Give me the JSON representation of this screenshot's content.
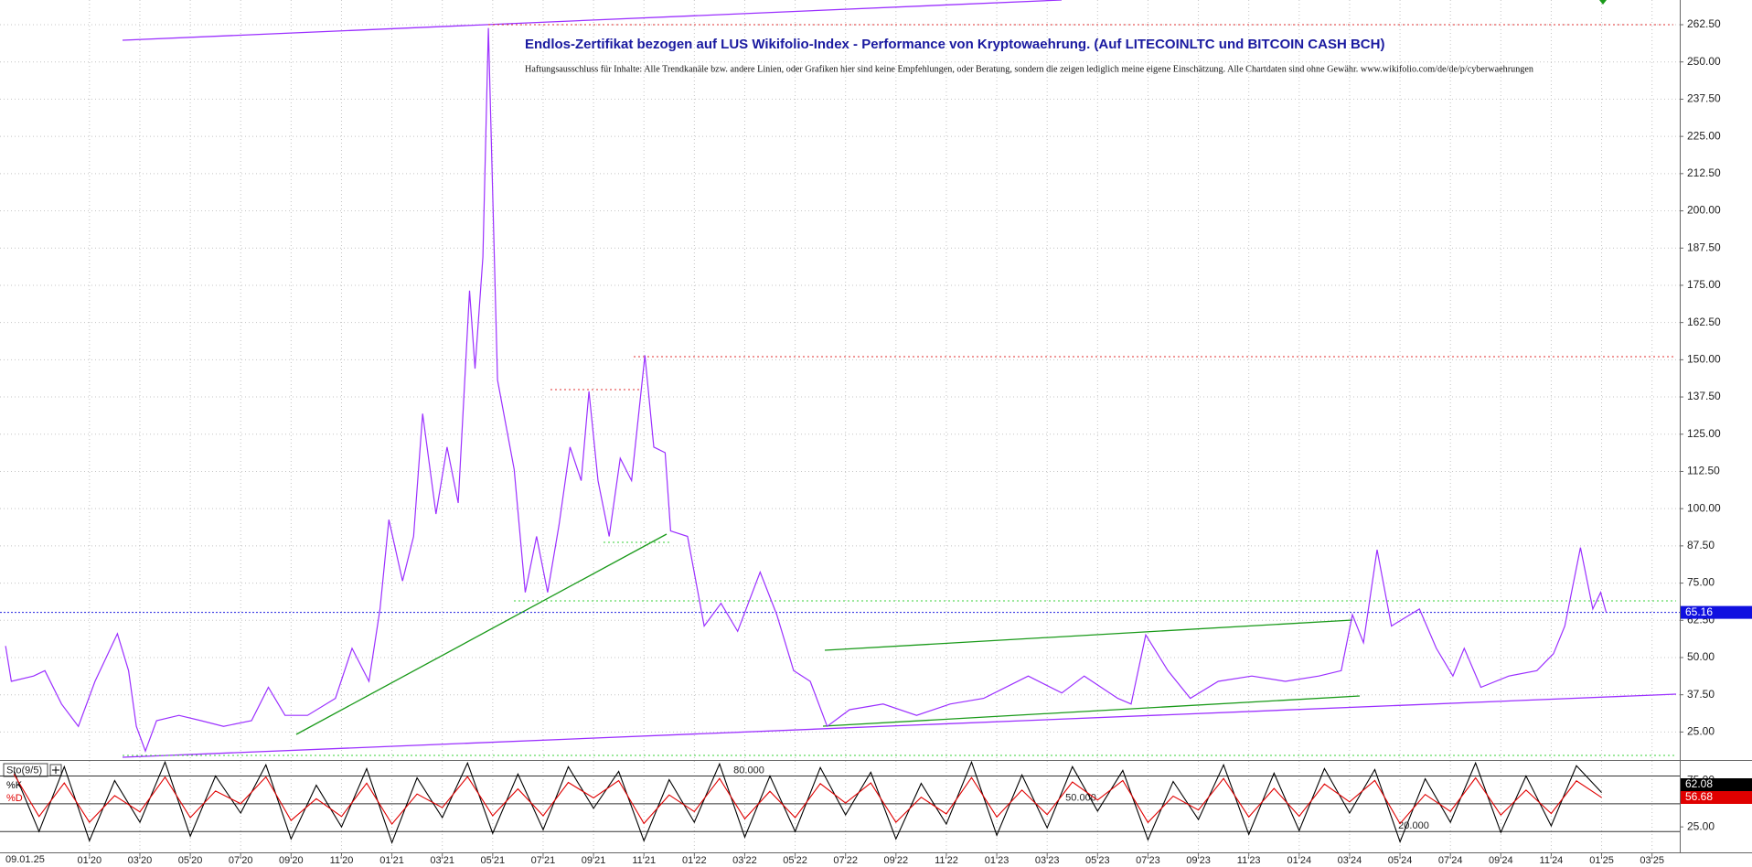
{
  "chart_data": [
    {
      "type": "line",
      "title": "Endlos-Zertifikat bezogen auf LUS Wikifolio-Index - Performance von Kryptowaehrung. (Auf LITECOINLTC und BITCOIN CASH BCH)",
      "subtitle": "Haftungsausschluss für Inhalte: Alle Trendkanäle bzw. andere Linien, oder Grafiken hier sind keine Empfehlungen, oder Beratung, sondern die zeigen lediglich meine eigene Einschätzung. Alle Chartdaten sind ohne Gewähr. www.wikifolio.com/de/de/p/cyberwaehrungen",
      "date": "09.01.25",
      "color": "#9b30ff",
      "grid": true,
      "x": [
        -3.33,
        -3.1,
        -2.22,
        -1.77,
        -1.11,
        -0.44,
        0.22,
        1.11,
        1.55,
        1.86,
        2.22,
        2.66,
        3.55,
        4.43,
        5.32,
        6.43,
        7.1,
        7.76,
        8.65,
        9.76,
        10.42,
        11.09,
        11.53,
        11.88,
        12.42,
        12.86,
        13.22,
        13.75,
        14.19,
        14.63,
        15.08,
        15.3,
        15.61,
        15.83,
        16.19,
        16.85,
        17.29,
        17.74,
        18.18,
        18.63,
        19.07,
        19.51,
        19.82,
        20.18,
        20.62,
        21.06,
        21.51,
        22.04,
        22.39,
        22.84,
        23.06,
        23.73,
        24.39,
        25.06,
        25.72,
        26.61,
        27.27,
        27.94,
        28.6,
        29.27,
        30.16,
        31.49,
        32.82,
        34.15,
        35.48,
        37.25,
        38.58,
        39.47,
        40.8,
        41.33,
        41.91,
        42.79,
        43.68,
        44.79,
        46.12,
        47.45,
        48.78,
        49.67,
        50.11,
        50.55,
        51.09,
        51.66,
        52.77,
        53.44,
        54.1,
        54.55,
        55.21,
        56.32,
        57.43,
        58.09,
        58.54,
        59.16,
        59.65,
        59.96,
        60.18
      ],
      "values": [
        53.9,
        42,
        43.8,
        45.6,
        34.4,
        26.9,
        42,
        58,
        45.6,
        26.9,
        18.6,
        28.8,
        30.6,
        28.8,
        26.9,
        28.8,
        40,
        30.6,
        30.6,
        36.3,
        53.1,
        42,
        66.3,
        96.3,
        75.7,
        90.7,
        131.9,
        98.2,
        120.7,
        101.9,
        173.2,
        147,
        184.5,
        261.4,
        143.2,
        113.2,
        71.9,
        90.7,
        71.9,
        94.4,
        120.7,
        109.4,
        139.4,
        109.4,
        90.7,
        116.9,
        109.4,
        151.5,
        120.7,
        118.8,
        92.5,
        90.7,
        60.6,
        68.2,
        58.8,
        78.7,
        64.4,
        45.6,
        42,
        26.9,
        32.5,
        34.4,
        30.6,
        34.4,
        36.3,
        43.8,
        38.1,
        43.8,
        36.3,
        34.4,
        57.6,
        45.6,
        36.3,
        42,
        43.8,
        42,
        43.8,
        45.6,
        64.4,
        55,
        86.2,
        60.6,
        66.3,
        53.1,
        43.8,
        53.1,
        40,
        43.8,
        45.6,
        51.3,
        60.6,
        86.9,
        66.3,
        71.9,
        65.2
      ],
      "current_value": 65.16,
      "xlim": [
        -3.55,
        63.1
      ],
      "ylim": [
        15.6,
        270.8
      ],
      "xticks": [
        {
          "value": 0,
          "label": "01'20"
        },
        {
          "value": 2,
          "label": "03'20"
        },
        {
          "value": 4,
          "label": "05'20"
        },
        {
          "value": 6,
          "label": "07'20"
        },
        {
          "value": 8,
          "label": "09'20"
        },
        {
          "value": 10,
          "label": "11'20"
        },
        {
          "value": 12,
          "label": "01'21"
        },
        {
          "value": 14,
          "label": "03'21"
        },
        {
          "value": 16,
          "label": "05'21"
        },
        {
          "value": 18,
          "label": "07'21"
        },
        {
          "value": 20,
          "label": "09'21"
        },
        {
          "value": 22,
          "label": "11'21"
        },
        {
          "value": 24,
          "label": "01'22"
        },
        {
          "value": 26,
          "label": "03'22"
        },
        {
          "value": 28,
          "label": "05'22"
        },
        {
          "value": 30,
          "label": "07'22"
        },
        {
          "value": 32,
          "label": "09'22"
        },
        {
          "value": 34,
          "label": "11'22"
        },
        {
          "value": 36,
          "label": "01'23"
        },
        {
          "value": 38,
          "label": "03'23"
        },
        {
          "value": 40,
          "label": "05'23"
        },
        {
          "value": 42,
          "label": "07'23"
        },
        {
          "value": 44,
          "label": "09'23"
        },
        {
          "value": 46,
          "label": "11'23"
        },
        {
          "value": 48,
          "label": "01'24"
        },
        {
          "value": 50,
          "label": "03'24"
        },
        {
          "value": 52,
          "label": "05'24"
        },
        {
          "value": 54,
          "label": "07'24"
        },
        {
          "value": 56,
          "label": "09'24"
        },
        {
          "value": 58,
          "label": "11'24"
        },
        {
          "value": 60,
          "label": "01'25"
        },
        {
          "value": 62,
          "label": "03'25"
        }
      ],
      "yticks": [
        {
          "value": 25,
          "label": "25.00"
        },
        {
          "value": 37.5,
          "label": "37.50"
        },
        {
          "value": 50,
          "label": "50.00"
        },
        {
          "value": 62.5,
          "label": "62.50"
        },
        {
          "value": 75,
          "label": "75.00"
        },
        {
          "value": 87.5,
          "label": "87.50"
        },
        {
          "value": 100,
          "label": "100.00"
        },
        {
          "value": 112.5,
          "label": "112.50"
        },
        {
          "value": 125,
          "label": "125.00"
        },
        {
          "value": 137.5,
          "label": "137.50"
        },
        {
          "value": 150,
          "label": "150.00"
        },
        {
          "value": 162.5,
          "label": "162.50"
        },
        {
          "value": 175,
          "label": "175.00"
        },
        {
          "value": 187.5,
          "label": "187.50"
        },
        {
          "value": 200,
          "label": "200.00"
        },
        {
          "value": 212.5,
          "label": "212.50"
        },
        {
          "value": 225,
          "label": "225.00"
        },
        {
          "value": 237.5,
          "label": "237.50"
        },
        {
          "value": 250,
          "label": "250.00"
        },
        {
          "value": 262.5,
          "label": "262.50"
        }
      ]
    },
    {
      "type": "line",
      "title": "Sto(9/5)",
      "x": [
        -3,
        -2,
        -1,
        0,
        1,
        2,
        3,
        4,
        5,
        6,
        7,
        8,
        9,
        10,
        11,
        12,
        13,
        14,
        15,
        16,
        17,
        18,
        19,
        20,
        21,
        22,
        23,
        24,
        25,
        26,
        27,
        28,
        29,
        30,
        31,
        32,
        33,
        34,
        35,
        36,
        37,
        38,
        39,
        40,
        41,
        42,
        43,
        44,
        45,
        46,
        47,
        48,
        49,
        50,
        51,
        52,
        53,
        54,
        55,
        56,
        57,
        58,
        59,
        60
      ],
      "series": [
        {
          "name": "%K",
          "color": "#000000",
          "values": [
            85,
            20,
            90,
            10,
            75,
            30,
            95,
            15,
            80,
            40,
            92,
            12,
            70,
            25,
            88,
            8,
            78,
            35,
            94,
            18,
            82,
            22,
            90,
            45,
            85,
            10,
            76,
            30,
            93,
            14,
            80,
            20,
            89,
            38,
            84,
            12,
            72,
            28,
            95,
            16,
            81,
            24,
            90,
            42,
            86,
            11,
            74,
            33,
            92,
            17,
            83,
            21,
            88,
            40,
            87,
            9,
            77,
            30,
            94,
            19,
            80,
            26,
            91,
            62.08
          ]
        },
        {
          "name": "%D",
          "color": "#e00000",
          "values": [
            82,
            36.25,
            72.5,
            30,
            58.75,
            41.25,
            78.75,
            35,
            63.75,
            50,
            79,
            32,
            55.5,
            36.25,
            72.25,
            28,
            60.5,
            45.75,
            79.25,
            37,
            66,
            37,
            73,
            56.25,
            75,
            28.75,
            59.5,
            41.5,
            77.25,
            33.75,
            63.5,
            35,
            71.75,
            50.75,
            72.5,
            30,
            57,
            39,
            78.25,
            35.75,
            64.75,
            38.25,
            73.5,
            54,
            75,
            29.75,
            58.25,
            43.25,
            77.25,
            35.75,
            66.5,
            36.5,
            71.25,
            52,
            75.25,
            28.5,
            60,
            41.75,
            78,
            37.75,
            64.75,
            39.5,
            74.75,
            56.68
          ]
        }
      ],
      "levels": [
        {
          "value": 80,
          "label": "80.000"
        },
        {
          "value": 50,
          "label": "50.000"
        },
        {
          "value": 20,
          "label": "20.000"
        }
      ],
      "ylim": [
        -2.5,
        96.25
      ],
      "yticks": [
        {
          "value": 75,
          "label": "75.00"
        },
        {
          "value": 25,
          "label": "25.00"
        }
      ]
    }
  ]
}
